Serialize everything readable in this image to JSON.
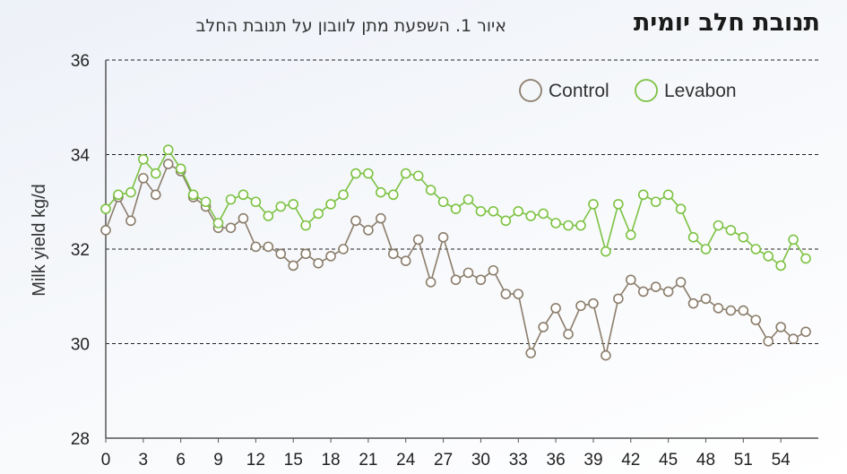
{
  "title": "תנובת חלב יומית",
  "figure_caption": "איור 1. השפעת מתן לוובון על תנובת החלב",
  "chart_data": {
    "type": "line",
    "title": "תנובת חלב יומית",
    "subtitle": "איור 1. השפעת מתן לוובון על תנובת החלב",
    "xlabel": "",
    "ylabel": "Milk yield kg/d",
    "ylim": [
      28,
      36
    ],
    "xlim": [
      0,
      57
    ],
    "yticks": [
      28,
      30,
      32,
      34,
      36
    ],
    "xticks": [
      0,
      3,
      6,
      9,
      12,
      15,
      18,
      21,
      24,
      27,
      30,
      33,
      36,
      39,
      42,
      45,
      48,
      51,
      54
    ],
    "grid": "horizontal dashed",
    "legend": "top-right",
    "series": [
      {
        "name": "Control",
        "color": "#8b7d6b",
        "x": [
          0,
          1,
          2,
          3,
          4,
          5,
          6,
          7,
          8,
          9,
          10,
          11,
          12,
          13,
          14,
          15,
          16,
          17,
          18,
          19,
          20,
          21,
          22,
          23,
          24,
          25,
          26,
          27,
          28,
          29,
          30,
          31,
          32,
          33,
          34,
          35,
          36,
          37,
          38,
          39,
          40,
          41,
          42,
          43,
          44,
          45,
          46,
          47,
          48,
          49,
          50,
          51,
          52,
          53,
          54,
          55,
          56
        ],
        "y": [
          32.4,
          33.1,
          32.6,
          33.5,
          33.15,
          33.8,
          33.65,
          33.1,
          32.9,
          32.45,
          32.45,
          32.65,
          32.05,
          32.05,
          31.9,
          31.65,
          31.9,
          31.7,
          31.85,
          32.0,
          32.6,
          32.4,
          32.65,
          31.9,
          31.75,
          32.2,
          31.3,
          32.25,
          31.35,
          31.5,
          31.35,
          31.55,
          31.05,
          31.05,
          29.8,
          30.35,
          30.75,
          30.2,
          30.8,
          30.85,
          29.75,
          30.95,
          31.35,
          31.1,
          31.2,
          31.1,
          31.3,
          30.85,
          30.95,
          30.75,
          30.7,
          30.7,
          30.5,
          30.05,
          30.35,
          30.1,
          30.25
        ]
      },
      {
        "name": "Levabon",
        "color": "#7cc242",
        "x": [
          0,
          1,
          2,
          3,
          4,
          5,
          6,
          7,
          8,
          9,
          10,
          11,
          12,
          13,
          14,
          15,
          16,
          17,
          18,
          19,
          20,
          21,
          22,
          23,
          24,
          25,
          26,
          27,
          28,
          29,
          30,
          31,
          32,
          33,
          34,
          35,
          36,
          37,
          38,
          39,
          40,
          41,
          42,
          43,
          44,
          45,
          46,
          47,
          48,
          49,
          50,
          51,
          52,
          53,
          54,
          55,
          56
        ],
        "y": [
          32.85,
          33.15,
          33.2,
          33.9,
          33.6,
          34.1,
          33.7,
          33.15,
          33.0,
          32.55,
          33.05,
          33.15,
          33.0,
          32.7,
          32.9,
          32.95,
          32.5,
          32.75,
          32.95,
          33.15,
          33.6,
          33.6,
          33.2,
          33.15,
          33.6,
          33.55,
          33.25,
          33.0,
          32.85,
          33.05,
          32.8,
          32.8,
          32.6,
          32.8,
          32.7,
          32.75,
          32.55,
          32.5,
          32.5,
          32.95,
          31.95,
          32.95,
          32.3,
          33.15,
          33.0,
          33.15,
          32.85,
          32.25,
          32.0,
          32.5,
          32.4,
          32.25,
          32.0,
          31.85,
          31.65,
          32.2,
          31.8
        ]
      }
    ]
  }
}
